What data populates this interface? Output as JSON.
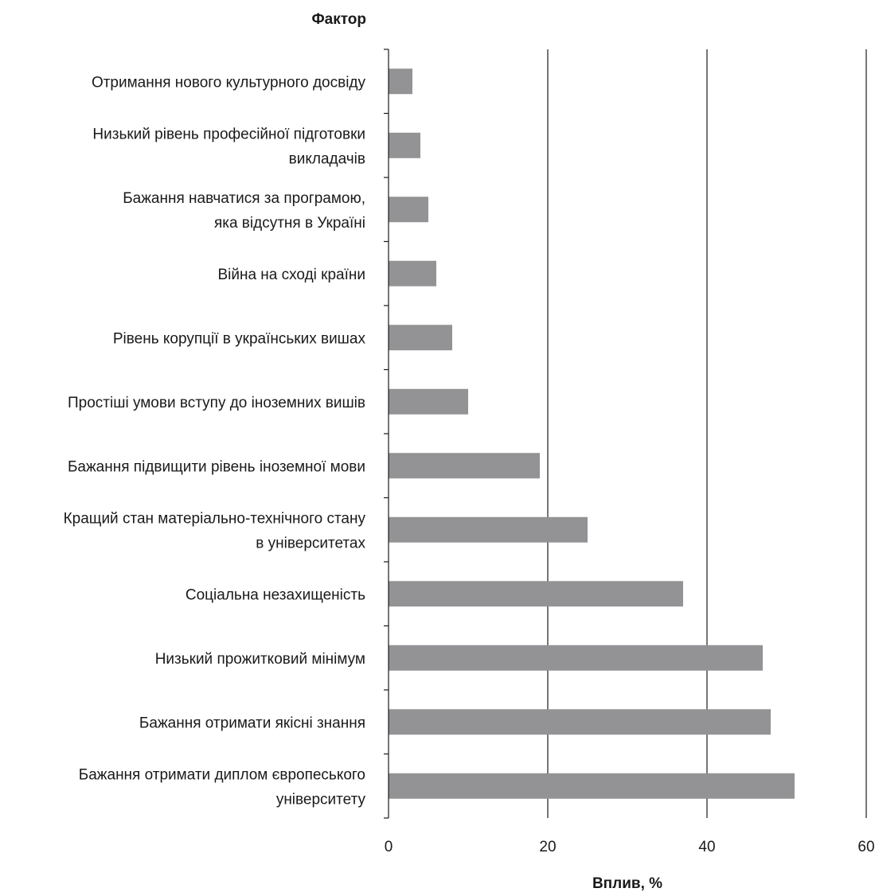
{
  "chart_data": {
    "type": "bar",
    "orientation": "horizontal",
    "ylabel": "Фактор",
    "xlabel": "Вплив, %",
    "xlim": [
      0,
      60
    ],
    "xticks": [
      "0",
      "20",
      "40",
      "60"
    ],
    "grid": "vertical",
    "bar_color": "#939396",
    "categories": [
      [
        "Отримання нового культурного досвіду"
      ],
      [
        "Низький рівень професійної підготовки",
        "викладачів"
      ],
      [
        "Бажання навчатися за програмою,",
        "яка відсутня в Україні"
      ],
      [
        "Війна на сході країни"
      ],
      [
        "Рівень корупції в українських вишах"
      ],
      [
        "Простіші умови вступу до іноземних вишів"
      ],
      [
        "Бажання підвищити рівень іноземної мови"
      ],
      [
        "Кращий стан матеріально-технічного стану",
        "в університетах"
      ],
      [
        "Соціальна незахищеність"
      ],
      [
        "Низький прожитковий мінімум"
      ],
      [
        "Бажання отримати якісні знання"
      ],
      [
        "Бажання отримати диплом європеського",
        "університету"
      ]
    ],
    "values": [
      3,
      4,
      5,
      6,
      8,
      10,
      19,
      25,
      37,
      47,
      48,
      51
    ]
  }
}
